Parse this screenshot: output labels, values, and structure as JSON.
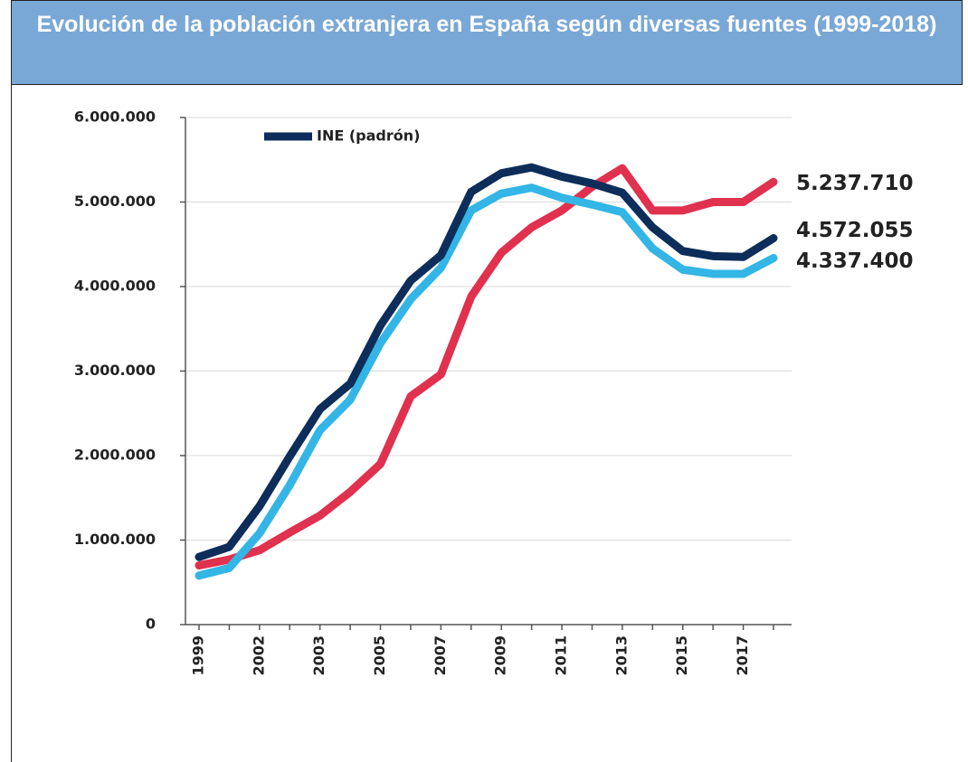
{
  "chart_data": {
    "type": "line",
    "title": "Evolución de la población extranjera en España según diversas fuentes (1999-2018)",
    "categories": [
      "1999",
      null,
      "2002",
      null,
      "2003",
      null,
      "2005",
      null,
      "2007",
      null,
      "2009",
      null,
      "2011",
      null,
      "2013",
      null,
      "2015",
      null,
      "2017",
      null
    ],
    "series": [
      {
        "color": "#e0314f",
        "values": [
          700000,
          770000,
          880000,
          1090000,
          1290000,
          1570000,
          1900000,
          2700000,
          2960000,
          3880000,
          4400000,
          4700000,
          4900000,
          5180000,
          5400000,
          4900000,
          4900000,
          5000000,
          5000000,
          5237710
        ],
        "value_labels": [
          null,
          null,
          null,
          null,
          null,
          null,
          null,
          null,
          null,
          null,
          null,
          null,
          null,
          null,
          null,
          null,
          null,
          null,
          null,
          "5.237.710"
        ]
      },
      {
        "color": "#33b5e5",
        "values": [
          580000,
          670000,
          1080000,
          1650000,
          2300000,
          2660000,
          3330000,
          3850000,
          4220000,
          4900000,
          5100000,
          5170000,
          5050000,
          4970000,
          4880000,
          4450000,
          4200000,
          4150000,
          4150000,
          4337400
        ],
        "value_labels": [
          null,
          null,
          null,
          null,
          null,
          null,
          null,
          null,
          null,
          null,
          null,
          null,
          null,
          null,
          null,
          null,
          null,
          null,
          null,
          "4.337.400"
        ]
      },
      {
        "name": "INE (padrón)",
        "color": "#0d2d5a",
        "values": [
          800000,
          920000,
          1400000,
          1990000,
          2550000,
          2850000,
          3540000,
          4070000,
          4370000,
          5120000,
          5340000,
          5410000,
          5300000,
          5220000,
          5110000,
          4700000,
          4420000,
          4360000,
          4350000,
          4572055
        ],
        "value_labels": [
          null,
          null,
          null,
          null,
          null,
          null,
          null,
          null,
          null,
          null,
          null,
          null,
          null,
          null,
          null,
          null,
          null,
          null,
          null,
          "4.572.055"
        ]
      }
    ],
    "ylim": [
      0,
      6000000
    ],
    "yticks": [
      0,
      {
        "value": 1000000,
        "label": "1.000.000"
      },
      {
        "value": 2000000,
        "label": "2.000.000"
      },
      {
        "value": 3000000,
        "label": "3.000.000"
      },
      {
        "value": 4000000,
        "label": "4.000.000"
      },
      {
        "value": 5000000,
        "label": "5.000.000"
      },
      {
        "value": 6000000,
        "label": "6.000.000"
      }
    ],
    "grid": true
  }
}
